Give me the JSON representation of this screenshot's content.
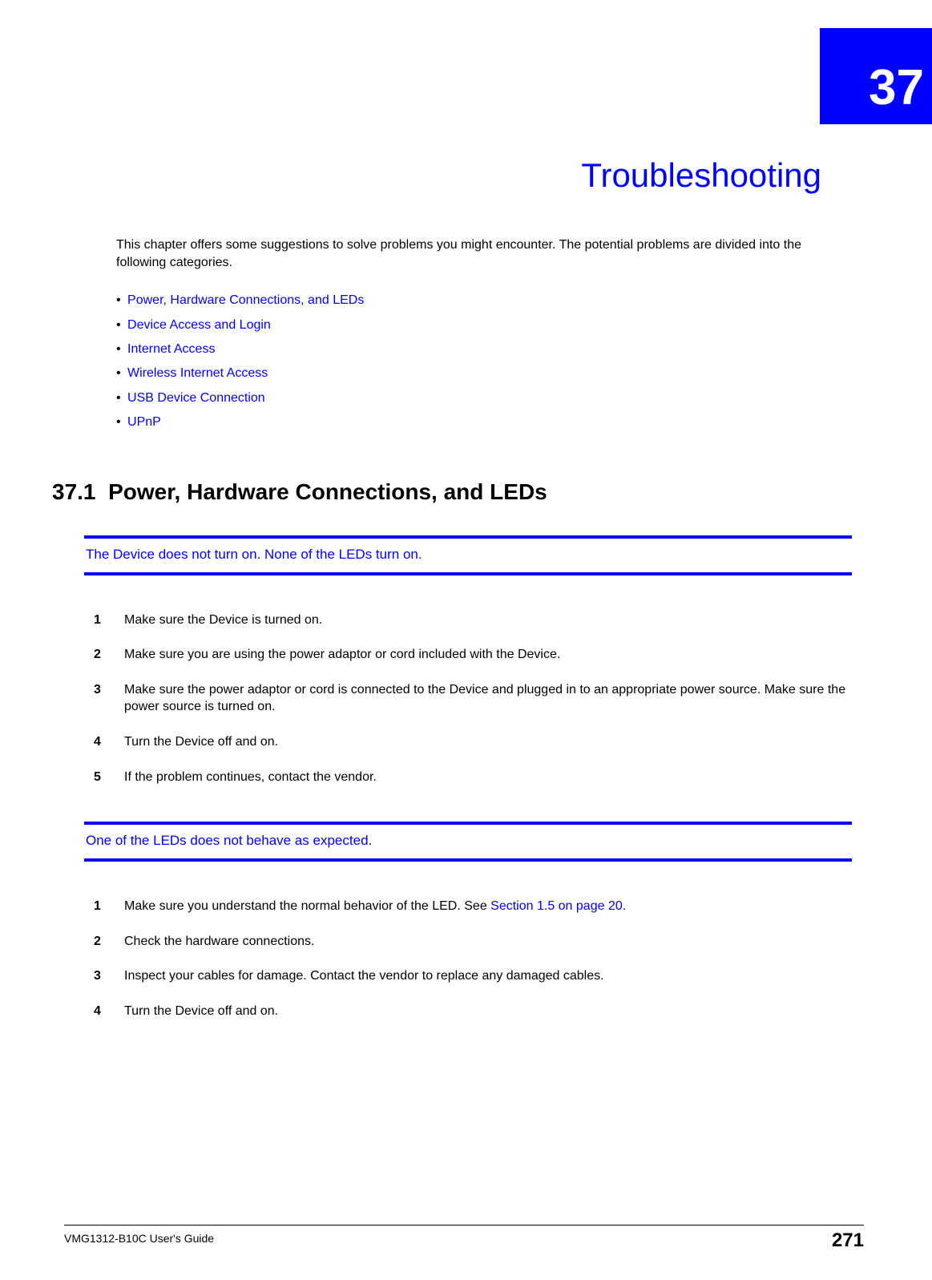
{
  "chapter": {
    "number": "37",
    "title": "Troubleshooting",
    "tab_bg": "#0000ff",
    "tab_fg": "#ffffff",
    "title_color": "#0000ff"
  },
  "intro": "This chapter offers some suggestions to solve problems you might encounter. The potential problems are divided into the following categories.",
  "links": [
    "Power, Hardware Connections, and LEDs",
    "Device Access and Login",
    "Internet Access",
    "Wireless Internet Access",
    "USB Device Connection",
    "UPnP"
  ],
  "section": {
    "number": "37.1",
    "title": "Power, Hardware Connections, and LEDs"
  },
  "problem1": {
    "title": "The Device does not turn on. None of the LEDs turn on.",
    "steps": [
      "Make sure the Device is turned on.",
      "Make sure you are using the power adaptor or cord included with the Device.",
      "Make sure the power adaptor or cord is connected to the Device and plugged in to an appropriate power source. Make sure the power source is turned on.",
      "Turn the Device off and on.",
      "If the problem continues, contact the vendor."
    ]
  },
  "problem2": {
    "title": "One of the LEDs does not behave as expected.",
    "step1_pre": "Make sure you understand the normal behavior of the LED. See ",
    "step1_xref": "Section 1.5 on page 20",
    "step1_post": ".",
    "steps_rest": [
      "Check the hardware connections.",
      "Inspect your cables for damage. Contact the vendor to replace any damaged cables.",
      "Turn the Device off and on."
    ]
  },
  "footer": {
    "guide": "VMG1312-B10C User's Guide",
    "page": "271"
  },
  "colors": {
    "link": "#0000ff",
    "text": "#000000",
    "rule": "#0000ff"
  }
}
